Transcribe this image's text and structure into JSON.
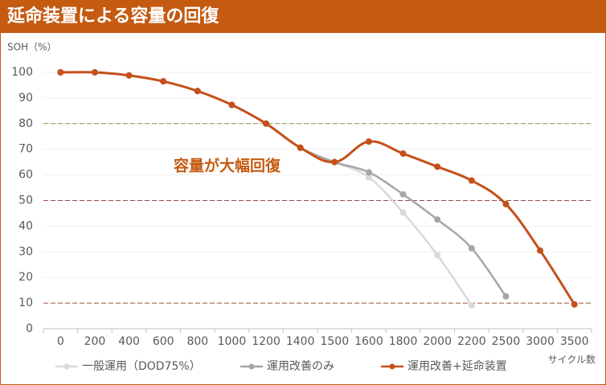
{
  "chart_data": {
    "type": "line",
    "title": "延命装置による容量の回復",
    "y_label": "SOH（%）",
    "x_label": "サイクル数",
    "annotation": "容量が大幅回復",
    "categories": [
      "0",
      "200",
      "400",
      "600",
      "800",
      "1000",
      "1200",
      "1400",
      "1500",
      "1600",
      "1800",
      "2000",
      "2200",
      "2500",
      "3000",
      "3500"
    ],
    "series": [
      {
        "name": "一般運用（DOD75%）",
        "color": "#d9d9d9",
        "values": [
          100,
          100,
          98.8,
          96.5,
          92.7,
          87.3,
          80,
          70.6,
          65,
          59,
          45.3,
          28.7,
          9.1,
          null,
          null,
          null
        ]
      },
      {
        "name": "運用改善のみ",
        "color": "#a6a6a6",
        "values": [
          100,
          100,
          98.8,
          96.5,
          92.7,
          87.3,
          80,
          70.6,
          65,
          61,
          52.4,
          42.6,
          31.4,
          12.6,
          null,
          null
        ]
      },
      {
        "name": "運用改善+延命装置",
        "color": "#c5501a",
        "values": [
          100,
          100,
          98.8,
          96.5,
          92.7,
          87.3,
          80,
          70.6,
          65,
          73,
          68.3,
          63.2,
          57.8,
          48.6,
          30.5,
          9.5
        ]
      }
    ],
    "reference_lines": [
      {
        "value": 80,
        "color": "#8c9a45"
      },
      {
        "value": 50,
        "color": "#9c4a4a"
      },
      {
        "value": 10,
        "color": "#a0553c"
      }
    ],
    "ylim": [
      0,
      100
    ],
    "yticks": [
      0,
      10,
      20,
      30,
      40,
      50,
      60,
      70,
      80,
      90,
      100
    ],
    "grid": true
  }
}
